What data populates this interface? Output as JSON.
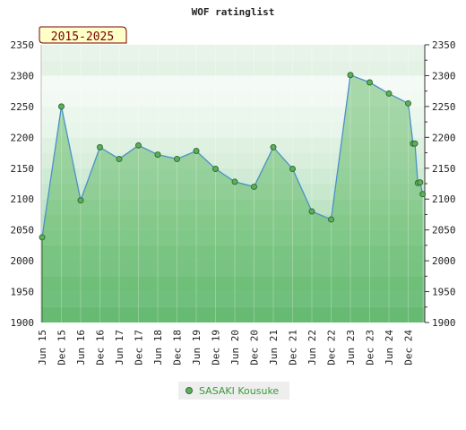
{
  "chart_data": {
    "type": "area",
    "title": "WOF ratinglist",
    "badge": "2015-2025",
    "ylim": [
      1900,
      2350
    ],
    "yticks": [
      1900,
      1950,
      2000,
      2050,
      2100,
      2150,
      2200,
      2250,
      2300,
      2350
    ],
    "xtick_labels": [
      "Jun 15",
      "Dec 15",
      "Jun 16",
      "Dec 16",
      "Jun 17",
      "Dec 17",
      "Jun 18",
      "Dec 18",
      "Jun 19",
      "Dec 19",
      "Jun 20",
      "Dec 20",
      "Jun 21",
      "Dec 21",
      "Jun 22",
      "Dec 22",
      "Jun 23",
      "Dec 23",
      "Jun 24",
      "Dec 24"
    ],
    "grid": true,
    "legend_position": "bottom-center",
    "series": [
      {
        "name": "SASAKI Kousuke",
        "x": [
          0,
          1,
          2,
          3,
          4,
          5,
          6,
          7,
          8,
          9,
          10,
          11,
          12,
          13,
          14,
          15,
          16,
          17,
          18,
          19,
          19.25,
          19.35,
          19.5,
          19.62,
          19.75
        ],
        "values": [
          2038,
          2250,
          2098,
          2184,
          2165,
          2187,
          2172,
          2165,
          2178,
          2149,
          2128,
          2120,
          2184,
          2149,
          2080,
          2067,
          2301,
          2289,
          2271,
          2255,
          2190,
          2190,
          2126,
          2127,
          2108
        ]
      }
    ],
    "colors": {
      "line": "#4a90c8",
      "marker_fill": "#5fae5f",
      "marker_stroke": "#2f6f2f",
      "area": "#4caf50",
      "badge_bg": "#ffffc8",
      "badge_text": "#7a0000",
      "legend_text": "#3a9a3a"
    },
    "band_colors": [
      "#7ec48f",
      "#8ccd9b",
      "#9ed6aa",
      "#b3dfbb",
      "#c8e8ce",
      "#d9efdc",
      "#e8f5ea",
      "#f2f9f3",
      "#e4f2e6"
    ]
  }
}
